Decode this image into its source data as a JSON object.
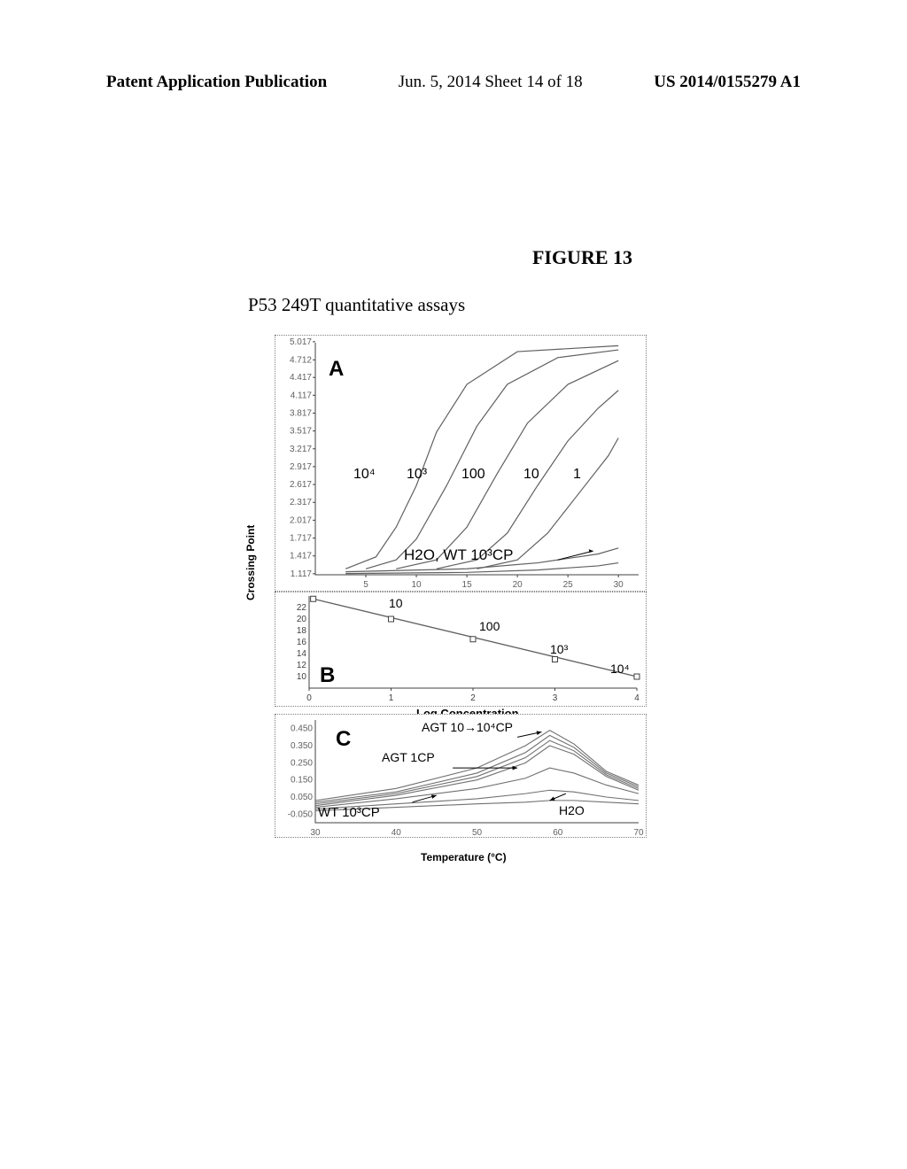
{
  "header": {
    "left": "Patent Application Publication",
    "center": "Jun. 5, 2014  Sheet 14 of 18",
    "right": "US 2014/0155279 A1"
  },
  "figure": {
    "label": "FIGURE 13",
    "title": "P53 249T quantitative assays"
  },
  "panel_a": {
    "label": "A",
    "type": "line",
    "xlim": [
      0,
      32
    ],
    "ylim": [
      1.1,
      5.0
    ],
    "x_ticks": [
      "5",
      "10",
      "15",
      "20",
      "25",
      "30"
    ],
    "y_ticks": [
      "1.117",
      "1.417",
      "1.717",
      "2.017",
      "2.317",
      "2.617",
      "2.917",
      "3.217",
      "3.517",
      "3.817",
      "4.117",
      "4.417",
      "4.712",
      "5.017"
    ],
    "curve_labels": [
      "10⁴",
      "10³",
      "100",
      "10",
      "1"
    ],
    "baseline_label": "H2O, WT 10³CP",
    "curve_color": "#505050",
    "series": [
      {
        "name": "1e4",
        "pts": [
          [
            3,
            1.2
          ],
          [
            6,
            1.4
          ],
          [
            8,
            1.9
          ],
          [
            10,
            2.6
          ],
          [
            12,
            3.5
          ],
          [
            15,
            4.3
          ],
          [
            20,
            4.85
          ],
          [
            30,
            4.95
          ]
        ]
      },
      {
        "name": "1e3",
        "pts": [
          [
            5,
            1.2
          ],
          [
            8,
            1.35
          ],
          [
            10,
            1.7
          ],
          [
            13,
            2.6
          ],
          [
            16,
            3.6
          ],
          [
            19,
            4.3
          ],
          [
            24,
            4.75
          ],
          [
            30,
            4.88
          ]
        ]
      },
      {
        "name": "100",
        "pts": [
          [
            8,
            1.2
          ],
          [
            12,
            1.35
          ],
          [
            15,
            1.9
          ],
          [
            18,
            2.8
          ],
          [
            21,
            3.65
          ],
          [
            25,
            4.3
          ],
          [
            30,
            4.7
          ]
        ]
      },
      {
        "name": "10",
        "pts": [
          [
            12,
            1.2
          ],
          [
            16,
            1.35
          ],
          [
            19,
            1.8
          ],
          [
            22,
            2.6
          ],
          [
            25,
            3.35
          ],
          [
            28,
            3.9
          ],
          [
            30,
            4.2
          ]
        ]
      },
      {
        "name": "1",
        "pts": [
          [
            16,
            1.2
          ],
          [
            20,
            1.35
          ],
          [
            23,
            1.8
          ],
          [
            26,
            2.45
          ],
          [
            29,
            3.1
          ],
          [
            30,
            3.4
          ]
        ]
      },
      {
        "name": "h2o",
        "pts": [
          [
            3,
            1.15
          ],
          [
            15,
            1.2
          ],
          [
            22,
            1.3
          ],
          [
            28,
            1.45
          ],
          [
            30,
            1.55
          ]
        ]
      },
      {
        "name": "wt",
        "pts": [
          [
            3,
            1.12
          ],
          [
            15,
            1.14
          ],
          [
            22,
            1.18
          ],
          [
            28,
            1.25
          ],
          [
            30,
            1.3
          ]
        ]
      }
    ]
  },
  "panel_b": {
    "label": "B",
    "type": "scatter-line",
    "y_label": "Crossing Point",
    "x_label": "Log Concentration",
    "xlim": [
      0,
      4
    ],
    "ylim": [
      8,
      24
    ],
    "x_ticks": [
      "0",
      "1",
      "2",
      "3",
      "4"
    ],
    "y_ticks": [
      "10",
      "12",
      "14",
      "16",
      "18",
      "20",
      "22"
    ],
    "point_labels": [
      "10",
      "100",
      "10³",
      "10⁴"
    ],
    "line_color": "#505050",
    "points": [
      [
        0.05,
        23.5
      ],
      [
        1,
        20
      ],
      [
        2,
        16.5
      ],
      [
        3,
        13
      ],
      [
        4,
        10
      ]
    ]
  },
  "panel_c": {
    "label": "C",
    "type": "melt-curve",
    "x_label": "Temperature (°C)",
    "xlim": [
      30,
      70
    ],
    "ylim": [
      -0.1,
      0.5
    ],
    "x_ticks": [
      "30",
      "40",
      "50",
      "60",
      "70"
    ],
    "y_ticks": [
      "-0.050",
      "0.050",
      "0.150",
      "0.250",
      "0.350",
      "0.450"
    ],
    "annotations": {
      "agt_high": "AGT 10→10⁴CP",
      "agt_low": "AGT 1CP",
      "wt": "WT 10³CP",
      "h2o": "H2O"
    },
    "series": [
      {
        "name": "high4",
        "pts": [
          [
            30,
            0.03
          ],
          [
            40,
            0.1
          ],
          [
            50,
            0.22
          ],
          [
            56,
            0.35
          ],
          [
            59,
            0.44
          ],
          [
            62,
            0.36
          ],
          [
            66,
            0.2
          ],
          [
            70,
            0.12
          ]
        ]
      },
      {
        "name": "high3",
        "pts": [
          [
            30,
            0.02
          ],
          [
            40,
            0.08
          ],
          [
            50,
            0.19
          ],
          [
            56,
            0.31
          ],
          [
            59,
            0.41
          ],
          [
            62,
            0.34
          ],
          [
            66,
            0.19
          ],
          [
            70,
            0.11
          ]
        ]
      },
      {
        "name": "high2",
        "pts": [
          [
            30,
            0.01
          ],
          [
            40,
            0.07
          ],
          [
            50,
            0.17
          ],
          [
            56,
            0.28
          ],
          [
            59,
            0.38
          ],
          [
            62,
            0.32
          ],
          [
            66,
            0.18
          ],
          [
            70,
            0.1
          ]
        ]
      },
      {
        "name": "high1",
        "pts": [
          [
            30,
            0.0
          ],
          [
            40,
            0.06
          ],
          [
            50,
            0.15
          ],
          [
            56,
            0.25
          ],
          [
            59,
            0.35
          ],
          [
            62,
            0.3
          ],
          [
            66,
            0.17
          ],
          [
            70,
            0.09
          ]
        ]
      },
      {
        "name": "agt1",
        "pts": [
          [
            30,
            -0.01
          ],
          [
            40,
            0.04
          ],
          [
            50,
            0.1
          ],
          [
            56,
            0.16
          ],
          [
            59,
            0.22
          ],
          [
            62,
            0.19
          ],
          [
            66,
            0.12
          ],
          [
            70,
            0.07
          ]
        ]
      },
      {
        "name": "wt",
        "pts": [
          [
            30,
            -0.02
          ],
          [
            40,
            0.01
          ],
          [
            50,
            0.04
          ],
          [
            56,
            0.07
          ],
          [
            59,
            0.09
          ],
          [
            62,
            0.08
          ],
          [
            66,
            0.05
          ],
          [
            70,
            0.03
          ]
        ]
      },
      {
        "name": "h2o",
        "pts": [
          [
            30,
            -0.03
          ],
          [
            40,
            -0.01
          ],
          [
            50,
            0.01
          ],
          [
            56,
            0.02
          ],
          [
            59,
            0.03
          ],
          [
            62,
            0.03
          ],
          [
            66,
            0.02
          ],
          [
            70,
            0.01
          ]
        ]
      }
    ]
  },
  "colors": {
    "text": "#000000",
    "axis": "#404040",
    "grid": "#b0b0b0",
    "curve": "#606060"
  }
}
